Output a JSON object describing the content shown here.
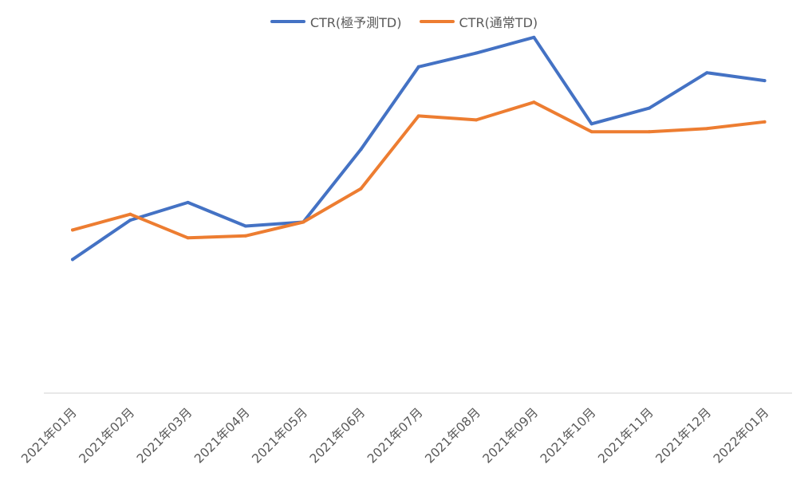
{
  "chart_data": {
    "type": "line",
    "title": "",
    "xlabel": "",
    "ylabel": "",
    "categories": [
      "2021年01月",
      "2021年02月",
      "2021年03月",
      "2021年04月",
      "2021年05月",
      "2021年06月",
      "2021年07月",
      "2021年08月",
      "2021年09月",
      "2021年10月",
      "2021年11月",
      "2021年12月",
      "2022年01月"
    ],
    "ylim": [
      0,
      100
    ],
    "grid": false,
    "legend_position": "top-center",
    "series": [
      {
        "name": "CTR(極予測TD)",
        "color": "#4472C4",
        "values": [
          34,
          44,
          48.5,
          42.5,
          43.5,
          62,
          83,
          86.5,
          90.5,
          68.5,
          72.5,
          81.5,
          79.5
        ]
      },
      {
        "name": "CTR(通常TD)",
        "color": "#ED7D31",
        "values": [
          41.5,
          45.5,
          39.5,
          40,
          43.5,
          52,
          70.5,
          69.5,
          74,
          66.5,
          66.5,
          67.3,
          69
        ]
      }
    ]
  }
}
